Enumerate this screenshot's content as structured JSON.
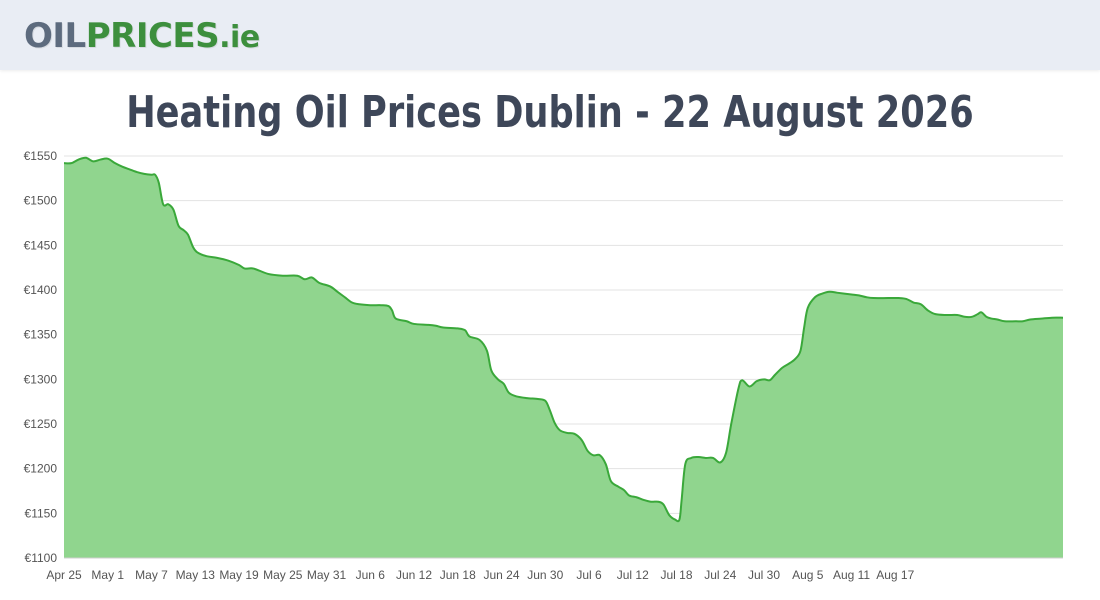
{
  "header": {
    "logo_part1": "OIL",
    "logo_part2": "PRICES",
    "logo_part3": ".ie"
  },
  "colors": {
    "header_bg": "#e9edf4",
    "logo_gray": "#5d6b7e",
    "logo_green": "#3d8f3d",
    "line": "#3aa83a",
    "fill": "#90d58e",
    "grid": "#e3e3e3"
  },
  "chart_data": {
    "type": "area",
    "title": "Heating Oil Prices Dublin - 22 August 2026",
    "xlabel": "",
    "ylabel": "",
    "ylim": [
      1100,
      1550
    ],
    "yticks": [
      1100,
      1150,
      1200,
      1250,
      1300,
      1350,
      1400,
      1450,
      1500,
      1550
    ],
    "ytick_prefix": "€",
    "grid": true,
    "legend": "none",
    "x_ticks": [
      {
        "label": "Apr 25",
        "day": 0
      },
      {
        "label": "May 1",
        "day": 6
      },
      {
        "label": "May 7",
        "day": 12
      },
      {
        "label": "May 13",
        "day": 18
      },
      {
        "label": "May 19",
        "day": 24
      },
      {
        "label": "May 25",
        "day": 30
      },
      {
        "label": "May 31",
        "day": 36
      },
      {
        "label": "Jun 6",
        "day": 42
      },
      {
        "label": "Jun 12",
        "day": 48
      },
      {
        "label": "Jun 18",
        "day": 54
      },
      {
        "label": "Jun 24",
        "day": 60
      },
      {
        "label": "Jun 30",
        "day": 66
      },
      {
        "label": "Jul 6",
        "day": 72
      },
      {
        "label": "Jul 12",
        "day": 78
      },
      {
        "label": "Jul 18",
        "day": 84
      },
      {
        "label": "Jul 24",
        "day": 90
      },
      {
        "label": "Jul 30",
        "day": 96
      },
      {
        "label": "Aug 5",
        "day": 102
      },
      {
        "label": "Aug 11",
        "day": 108
      },
      {
        "label": "Aug 17",
        "day": 114
      }
    ],
    "series": [
      {
        "values": [
          [
            0,
            1542
          ],
          [
            1,
            1542
          ],
          [
            2,
            1546
          ],
          [
            3,
            1548
          ],
          [
            4,
            1544
          ],
          [
            5,
            1546
          ],
          [
            6,
            1547
          ],
          [
            7,
            1542
          ],
          [
            8,
            1538
          ],
          [
            9,
            1535
          ],
          [
            10,
            1532
          ],
          [
            11,
            1530
          ],
          [
            12,
            1529
          ],
          [
            12.5,
            1529
          ],
          [
            13,
            1520
          ],
          [
            13.6,
            1496
          ],
          [
            14.3,
            1496
          ],
          [
            15,
            1490
          ],
          [
            15.7,
            1472
          ],
          [
            16.4,
            1467
          ],
          [
            17,
            1462
          ],
          [
            17.7,
            1448
          ],
          [
            18.3,
            1442
          ],
          [
            19.5,
            1438
          ],
          [
            21,
            1436
          ],
          [
            22.5,
            1433
          ],
          [
            24,
            1428
          ],
          [
            24.8,
            1424
          ],
          [
            26,
            1424
          ],
          [
            28,
            1418
          ],
          [
            30,
            1416
          ],
          [
            32,
            1416
          ],
          [
            33,
            1412
          ],
          [
            34,
            1414
          ],
          [
            35,
            1408
          ],
          [
            36.5,
            1404
          ],
          [
            37.5,
            1398
          ],
          [
            38.5,
            1392
          ],
          [
            39.5,
            1386
          ],
          [
            40.5,
            1384
          ],
          [
            42,
            1383
          ],
          [
            43.5,
            1383
          ],
          [
            44.5,
            1382
          ],
          [
            45,
            1377
          ],
          [
            45.5,
            1368
          ],
          [
            47,
            1365
          ],
          [
            48,
            1362
          ],
          [
            50,
            1361
          ],
          [
            51,
            1360
          ],
          [
            52,
            1358
          ],
          [
            54,
            1357
          ],
          [
            55,
            1355
          ],
          [
            55.6,
            1348
          ],
          [
            57,
            1344
          ],
          [
            58,
            1332
          ],
          [
            58.6,
            1310
          ],
          [
            59.5,
            1300
          ],
          [
            60.3,
            1295
          ],
          [
            61,
            1285
          ],
          [
            62,
            1281
          ],
          [
            63.5,
            1279
          ],
          [
            65,
            1278
          ],
          [
            66,
            1276
          ],
          [
            66.6,
            1266
          ],
          [
            67.3,
            1251
          ],
          [
            68,
            1243
          ],
          [
            69,
            1240
          ],
          [
            70,
            1239
          ],
          [
            71,
            1232
          ],
          [
            71.8,
            1220
          ],
          [
            72.6,
            1215
          ],
          [
            73.5,
            1215
          ],
          [
            74.3,
            1205
          ],
          [
            75,
            1186
          ],
          [
            76,
            1180
          ],
          [
            76.8,
            1176
          ],
          [
            77.5,
            1170
          ],
          [
            78.5,
            1168
          ],
          [
            79.5,
            1165
          ],
          [
            80.5,
            1163
          ],
          [
            81.5,
            1163
          ],
          [
            82.2,
            1160
          ],
          [
            83,
            1148
          ],
          [
            83.8,
            1143
          ],
          [
            84.4,
            1143
          ],
          [
            84.7,
            1165
          ],
          [
            85.2,
            1205
          ],
          [
            86,
            1212
          ],
          [
            87,
            1213
          ],
          [
            88,
            1212
          ],
          [
            89,
            1212
          ],
          [
            90,
            1207
          ],
          [
            90.8,
            1218
          ],
          [
            91.5,
            1250
          ],
          [
            92.5,
            1290
          ],
          [
            93,
            1299
          ],
          [
            94,
            1292
          ],
          [
            95,
            1298
          ],
          [
            96,
            1300
          ],
          [
            96.8,
            1299
          ],
          [
            97.5,
            1305
          ],
          [
            98.5,
            1313
          ],
          [
            99.5,
            1318
          ],
          [
            100.3,
            1323
          ],
          [
            101,
            1332
          ],
          [
            101.5,
            1358
          ],
          [
            102,
            1380
          ],
          [
            103,
            1392
          ],
          [
            104,
            1396
          ],
          [
            105,
            1398
          ],
          [
            106,
            1397
          ],
          [
            107,
            1396
          ],
          [
            108,
            1395
          ],
          [
            109,
            1394
          ],
          [
            110,
            1392
          ],
          [
            111,
            1391
          ],
          [
            113,
            1391
          ],
          [
            114.5,
            1391
          ],
          [
            115.5,
            1390
          ],
          [
            116.5,
            1386
          ],
          [
            117.5,
            1384
          ],
          [
            118.5,
            1377
          ],
          [
            119.5,
            1373
          ],
          [
            121,
            1372
          ],
          [
            122.5,
            1372
          ],
          [
            123.5,
            1370
          ],
          [
            124.5,
            1370
          ],
          [
            125.3,
            1373
          ],
          [
            125.8,
            1375
          ],
          [
            126.5,
            1370
          ],
          [
            127.2,
            1368
          ],
          [
            128,
            1367
          ],
          [
            129,
            1365
          ],
          [
            130.5,
            1365
          ],
          [
            131.5,
            1365
          ],
          [
            132.5,
            1367
          ],
          [
            134,
            1368
          ],
          [
            135.5,
            1369
          ],
          [
            137,
            1369
          ]
        ]
      }
    ]
  }
}
